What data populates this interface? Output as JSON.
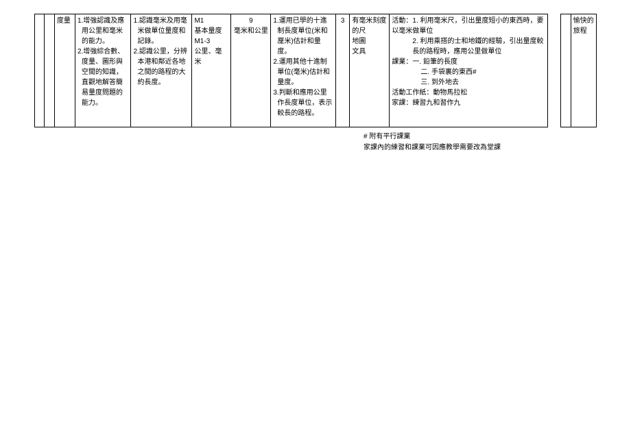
{
  "main": {
    "col2": "度量",
    "col3": [
      "1.增強認識及應用公里和毫米的能力。",
      "2.增強綜合數、度量、圖形與空間的知識，直觀地解答簡易量度問題的能力。"
    ],
    "col4": [
      "1.認識毫米及用毫米做單位量度和記錄。",
      "2.認識公里，分辨本港和鄰近各地之間的路程的大約長度。"
    ],
    "col5": [
      "M1",
      "基本量度",
      "M1-3",
      "公里、毫米"
    ],
    "col6_top": "9",
    "col6_bottom": "毫米和公里",
    "col7": [
      "1.運用已學的十進制長度單位(米和厘米)估計和量度。",
      "2.運用其他十進制單位(毫米)估計和量度。",
      "3.判斷和應用公里作長度單位，表示較長的路程。"
    ],
    "col8": "3",
    "col9": [
      "有毫米刻度的尺",
      "地圖",
      "文具"
    ],
    "col10": [
      "活動：1. 利用毫米尺，引出量度短小的東西時，要以毫米做單位",
      "2. 利用乘搭的士和地鐵的經驗，引出量度較長的路程時，應用公里做單位",
      "課業：一. 鉛筆的長度",
      "二. 手袋裏的東西#",
      "三. 到外地去",
      "活動工作紙：動物馬拉松",
      "家課：練習九和習作九"
    ]
  },
  "side": {
    "col1": [
      "愉快的",
      "旅程"
    ]
  },
  "notes": {
    "line1": "# 附有平行課業",
    "line2": "家課內的練習和課業可因應教學需要改為堂課"
  }
}
